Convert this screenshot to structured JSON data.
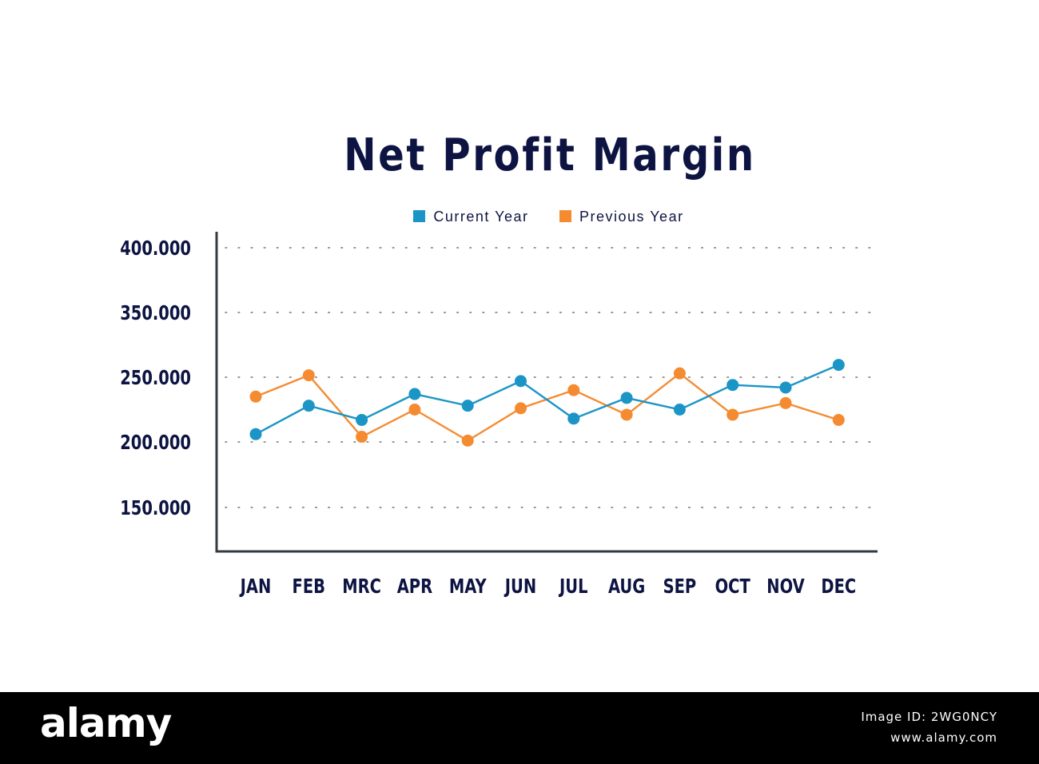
{
  "chart_data": {
    "type": "line",
    "title": "Net Profit Margin",
    "categories": [
      "JAN",
      "FEB",
      "MRC",
      "APR",
      "MAY",
      "JUN",
      "JUL",
      "AUG",
      "SEP",
      "OCT",
      "NOV",
      "DEC"
    ],
    "series": [
      {
        "name": "Current Year",
        "color": "#1a95c6",
        "values": [
          206,
          228,
          217,
          237,
          228,
          247,
          218,
          234,
          225,
          244,
          242,
          269
        ]
      },
      {
        "name": "Previous Year",
        "color": "#f58b31",
        "values": [
          235,
          253,
          204,
          225,
          201,
          226,
          240,
          221,
          256,
          221,
          230,
          217
        ]
      }
    ],
    "y_ticks": [
      {
        "value": 400,
        "label": "400.000"
      },
      {
        "value": 350,
        "label": "350.000"
      },
      {
        "value": 250,
        "label": "250.000"
      },
      {
        "value": 200,
        "label": "200.000"
      },
      {
        "value": 150,
        "label": "150.000"
      }
    ],
    "xlabel": "",
    "ylabel": "",
    "legend": "top-center",
    "grid": "dotted-horizontal",
    "axis_color": "#333b40",
    "text_color": "#0d1442"
  },
  "footer": {
    "brand": "alamy",
    "image_id": "Image ID: 2WG0NCY",
    "site": "www.alamy.com"
  }
}
